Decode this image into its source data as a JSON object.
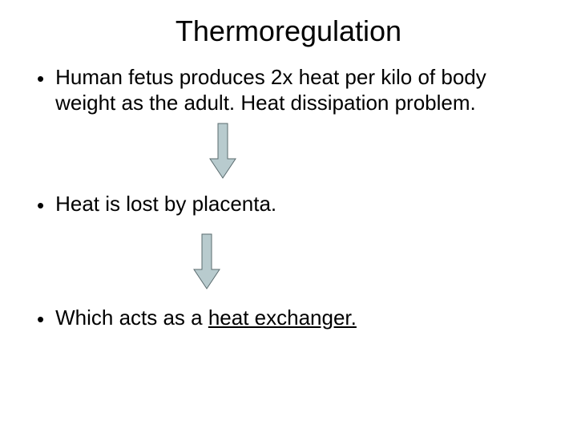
{
  "title": "Thermoregulation",
  "bullets": [
    {
      "text": "Human fetus produces 2x heat per kilo of body weight as the adult. Heat dissipation problem."
    },
    {
      "text": "Heat is lost by placenta."
    },
    {
      "prefix": "Which acts as a ",
      "underlined": "heat exchanger."
    }
  ],
  "arrow": {
    "fill": "#b8cbce",
    "stroke": "#5a6b6e",
    "stroke_width": 1,
    "width": 36,
    "height": 72
  },
  "colors": {
    "background": "#ffffff",
    "text": "#000000"
  },
  "typography": {
    "title_fontsize": 36,
    "body_fontsize": 26,
    "font_family": "Arial"
  }
}
